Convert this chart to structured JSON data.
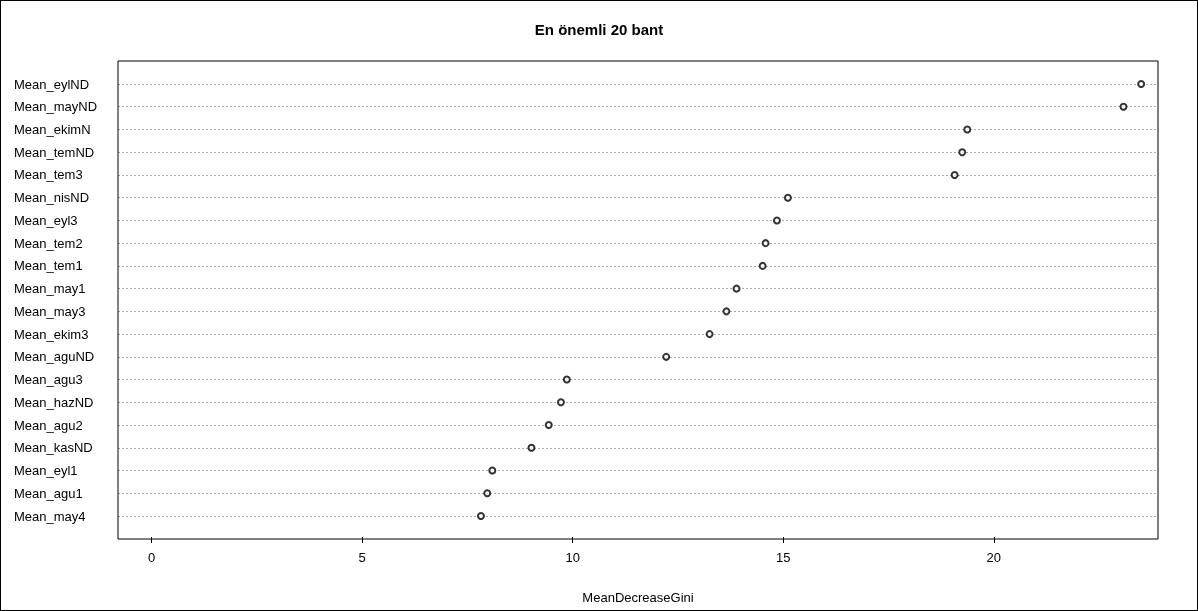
{
  "chart_data": {
    "type": "scatter",
    "orientation": "horizontal",
    "title": "En önemli 20 bant",
    "xlabel": "MeanDecreaseGini",
    "categories": [
      "Mean_eylND",
      "Mean_mayND",
      "Mean_ekimN",
      "Mean_temND",
      "Mean_tem3",
      "Mean_nisND",
      "Mean_eyl3",
      "Mean_tem2",
      "Mean_tem1",
      "Mean_may1",
      "Mean_may3",
      "Mean_ekim3",
      "Mean_aguND",
      "Mean_agu3",
      "Mean_hazND",
      "Mean_agu2",
      "Mean_kasND",
      "Mean_eyl1",
      "Mean_agu1",
      "Mean_may4"
    ],
    "series": [
      {
        "color": "#000000",
        "values": [
          23.5,
          23.08,
          19.37,
          19.25,
          19.07,
          15.11,
          14.85,
          14.58,
          14.51,
          13.89,
          13.65,
          13.25,
          12.22,
          9.86,
          9.72,
          9.43,
          9.02,
          8.09,
          7.97,
          7.82
        ]
      }
    ],
    "xlim": [
      -0.8,
      23.9
    ],
    "xticks": [
      0,
      5,
      10,
      15,
      20
    ],
    "grid": "y",
    "marker": "circle"
  }
}
